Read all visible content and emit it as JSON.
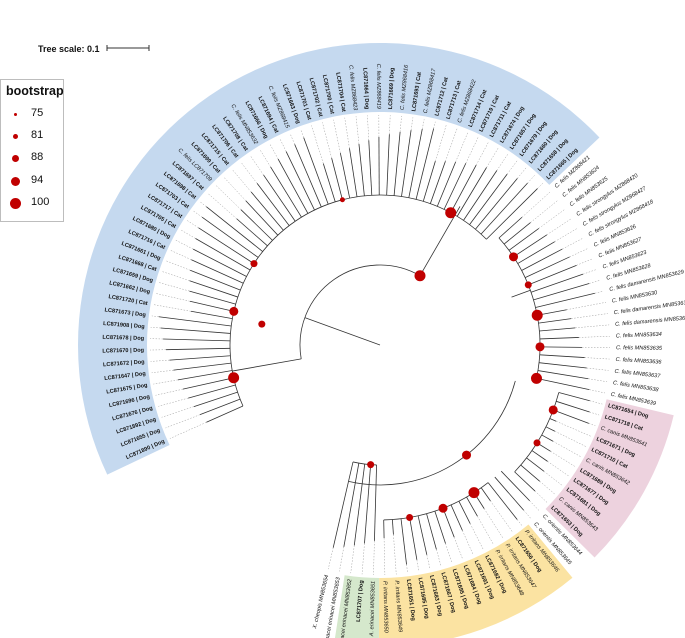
{
  "scale_label": "Tree scale: 0.1",
  "legend": {
    "title": "bootstrap",
    "entries": [
      {
        "value": "75",
        "r": 1.5
      },
      {
        "value": "81",
        "r": 2.5
      },
      {
        "value": "88",
        "r": 3.5
      },
      {
        "value": "94",
        "r": 4.5
      },
      {
        "value": "100",
        "r": 5.5
      }
    ]
  },
  "colors": {
    "blue_clade": "#c5d9ef",
    "yellow_clade": "#fbe3a2",
    "pink_clade": "#edd2de",
    "green_clade": "#d5e8cc",
    "node": "#c00000",
    "branch": "#333333"
  },
  "leaves": [
    {
      "label": "LC871890 | Dog"
    },
    {
      "label": "LC871655 | Dog"
    },
    {
      "label": "LC871892 | Dog"
    },
    {
      "label": "LC871676 | Dog"
    },
    {
      "label": "LC871696 | Dog"
    },
    {
      "label": "LC871675 | Dog"
    },
    {
      "label": "LC871647 | Dog"
    },
    {
      "label": "LC871672 | Dog"
    },
    {
      "label": "LC871670 | Dog"
    },
    {
      "label": "LC871678 | Dog"
    },
    {
      "label": "LC871908 | Dog"
    },
    {
      "label": "LC871673 | Dog"
    },
    {
      "label": "LC871720 | Cat"
    },
    {
      "label": "LC871662 | Dog"
    },
    {
      "label": "LC871659 | Dog"
    },
    {
      "label": "LC871668 | Cat"
    },
    {
      "label": "LC871661 | Dog"
    },
    {
      "label": "LC871716 | Cat"
    },
    {
      "label": "LC871680 | Dog"
    },
    {
      "label": "LC871705 | Cat"
    },
    {
      "label": "LC871717 | Cat"
    },
    {
      "label": "LC871703 | Cat"
    },
    {
      "label": "LC871698 | Cat"
    },
    {
      "label": "LC871697 | Cat"
    },
    {
      "label": "C. felis LC871709"
    },
    {
      "label": "LC871699 | Cat"
    },
    {
      "label": "LC871715 | Cat"
    },
    {
      "label": "LC871706 | Cat"
    },
    {
      "label": "LC871708 | Cat"
    },
    {
      "label": "C. felis MN853632"
    },
    {
      "label": "LC871666 | Dog"
    },
    {
      "label": "LC871694 | Cat"
    },
    {
      "label": "C. felis MZ868415"
    },
    {
      "label": "LC871663 | Dog"
    },
    {
      "label": "LC871701 | Cat"
    },
    {
      "label": "LC871702 | Cat"
    },
    {
      "label": "LC871700 | Cat"
    },
    {
      "label": "LC871704 | Cat"
    },
    {
      "label": "C. felis MZ868423"
    },
    {
      "label": "LC871664 | Dog"
    },
    {
      "label": "C. felis MZ868419"
    },
    {
      "label": "LC871669 | Dog"
    },
    {
      "label": "C. felis MZ868416"
    },
    {
      "label": "LC871693 | Cat"
    },
    {
      "label": "C. felis MZ868417"
    },
    {
      "label": "LC871712 | Cat"
    },
    {
      "label": "LC871713 | Cat"
    },
    {
      "label": "C. felis MZ868422"
    },
    {
      "label": "LC871714 | Cat"
    },
    {
      "label": "LC871719 | Cat"
    },
    {
      "label": "LC871711 | Cat"
    },
    {
      "label": "LC871674 | Dog"
    },
    {
      "label": "LC871657 | Dog"
    },
    {
      "label": "LC871679 | Dog"
    },
    {
      "label": "LC871660 | Dog"
    },
    {
      "label": "LC871658 | Dog"
    },
    {
      "label": "LC871665 | Dog"
    },
    {
      "label": "C. felis MZ868421"
    },
    {
      "label": "C. felis MN853624"
    },
    {
      "label": "C. felis MN853625"
    },
    {
      "label": "C. felis strongylus MZ868420"
    },
    {
      "label": "C. felis strongylus MZ868427"
    },
    {
      "label": "C. felis strongylus MZ868418"
    },
    {
      "label": "C. felis MN853626"
    },
    {
      "label": "C. felis MN853627"
    },
    {
      "label": "C. felis MN853623"
    },
    {
      "label": "C. felis MN853628"
    },
    {
      "label": "C. felis damarensis MN853629"
    },
    {
      "label": "C. felis MN853630"
    },
    {
      "label": "C. felis damarensis MN853631"
    },
    {
      "label": "C. felis damarensis MN853633"
    },
    {
      "label": "C. felis MN853634"
    },
    {
      "label": "C. felis MN853635"
    },
    {
      "label": "C. felis MN853636"
    },
    {
      "label": "C. felis MN853637"
    },
    {
      "label": "C. felis MN853638"
    },
    {
      "label": "C. felis MN853639"
    },
    {
      "label": "LC871654 | Dog"
    },
    {
      "label": "LC871718 | Cat"
    },
    {
      "label": "C. canis MN853641"
    },
    {
      "label": "LC871671 | Dog"
    },
    {
      "label": "LC871710 | Cat"
    },
    {
      "label": "C. canis MN853642"
    },
    {
      "label": "LC871689 | Dog"
    },
    {
      "label": "LC871677 | Dog"
    },
    {
      "label": "LC871681 | Dog"
    },
    {
      "label": "C. canis MN853643"
    },
    {
      "label": "LC871653 | Dog"
    },
    {
      "label": "C. orientis MN853644"
    },
    {
      "label": "C. orientis MN853645"
    },
    {
      "label": "P. irritans MN853646"
    },
    {
      "label": "LC871656 | Dog"
    },
    {
      "label": "P. irritans MN853647"
    },
    {
      "label": "P. irritans MN853648"
    },
    {
      "label": "LC871682 | Dog"
    },
    {
      "label": "LC871691 | Dog"
    },
    {
      "label": "LC871684 | Dog"
    },
    {
      "label": "LC871695 | Dog"
    },
    {
      "label": "LC871667 | Dog"
    },
    {
      "label": "LC871683 | Dog"
    },
    {
      "label": "LC871685 | Dog"
    },
    {
      "label": "LC871651 | Dog"
    },
    {
      "label": "P. irritans MN853649"
    },
    {
      "label": "P. irritans MN853650"
    },
    {
      "label": "A. erinacei MN853651"
    },
    {
      "label": "LC871707 | Dog"
    },
    {
      "label": "A. erinacei erinacei MN853652"
    },
    {
      "label": "A. erinacei erinacei MN853653"
    },
    {
      "label": "X. cheopis MN853654"
    }
  ]
}
